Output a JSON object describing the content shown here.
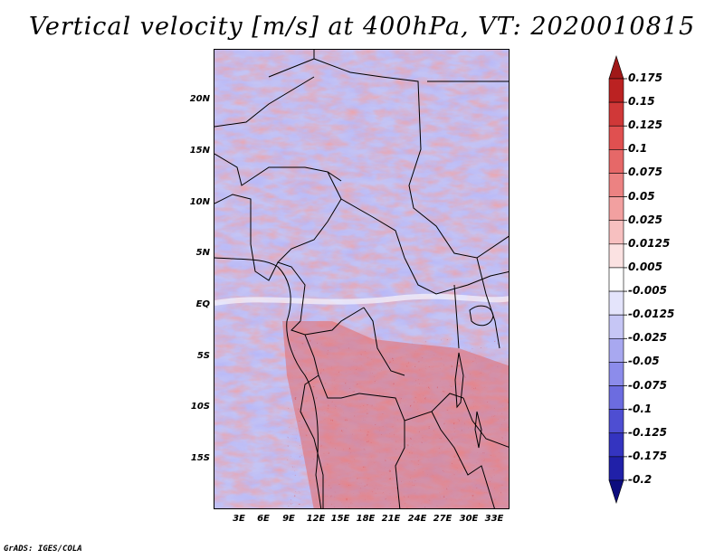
{
  "title": "Vertical velocity [m/s] at 400hPa, VT: 2020010815",
  "latitude_labels": [
    "20N",
    "15N",
    "10N",
    "5N",
    "EQ",
    "5S",
    "10S",
    "15S"
  ],
  "longitude_labels": [
    "3E",
    "6E",
    "9E",
    "12E",
    "15E",
    "18E",
    "21E",
    "24E",
    "27E",
    "30E",
    "33E"
  ],
  "colorbar": {
    "labels": [
      "0.175",
      "0.15",
      "0.125",
      "0.1",
      "0.075",
      "0.05",
      "0.025",
      "0.0125",
      "0.005",
      "-0.005",
      "-0.0125",
      "-0.025",
      "-0.05",
      "-0.075",
      "-0.1",
      "-0.125",
      "-0.175",
      "-0.2"
    ],
    "colors": [
      "#a01818",
      "#bb2222",
      "#d03838",
      "#e05050",
      "#e66868",
      "#ec8282",
      "#f2a0a0",
      "#f7c0c0",
      "#fbe2e2",
      "#ffffff",
      "#e4e4fb",
      "#c6c6f5",
      "#a8a8f0",
      "#8c8ceb",
      "#6c6ce0",
      "#4e4ed2",
      "#3434c0",
      "#2020a8",
      "#0d0d7e"
    ]
  },
  "palette": {
    "positive": "#e06060",
    "negative": "#7878e8",
    "neutral": "#ffffff",
    "border": "#000000"
  },
  "footer": "GrADS: IGES/COLA"
}
